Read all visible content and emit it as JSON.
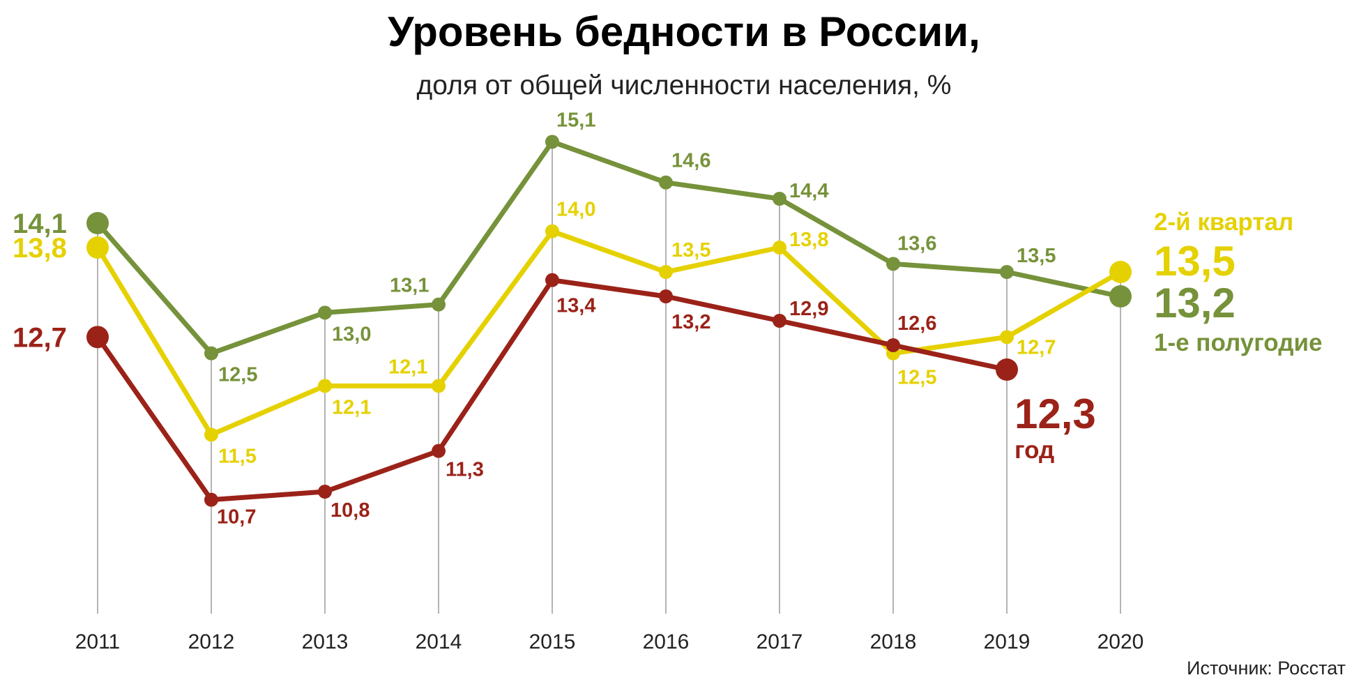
{
  "chart_data": {
    "type": "line",
    "title": "Уровень бедности в России,",
    "subtitle": "доля от общей численности населения, %",
    "source": "Источник: Росстат",
    "x": [
      "2011",
      "2012",
      "2013",
      "2014",
      "2015",
      "2016",
      "2017",
      "2018",
      "2019",
      "2020"
    ],
    "ylim": [
      9.0,
      15.6
    ],
    "grid": "vertical lines at each year",
    "series": [
      {
        "key": "half",
        "name": "1-е полугодие",
        "color": "#76923a",
        "values": [
          14.1,
          12.5,
          13.0,
          13.1,
          15.1,
          14.6,
          14.4,
          13.6,
          13.5,
          13.2
        ],
        "labels": [
          "14,1",
          "12,5",
          "13,0",
          "13,1",
          "15,1",
          "14,6",
          "14,4",
          "13,6",
          "13,5",
          "13,2"
        ]
      },
      {
        "key": "quarter",
        "name": "2-й квартал",
        "color": "#e5d100",
        "values": [
          13.8,
          11.5,
          12.1,
          12.1,
          14.0,
          13.5,
          13.8,
          12.5,
          12.7,
          13.5
        ],
        "labels": [
          "13,8",
          "11,5",
          "12,1",
          "12,1",
          "14,0",
          "13,5",
          "13,8",
          "12,5",
          "12,7",
          "13,5"
        ]
      },
      {
        "key": "year",
        "name": "год",
        "color": "#9b2218",
        "values": [
          12.7,
          10.7,
          10.8,
          11.3,
          13.4,
          13.2,
          12.9,
          12.6,
          12.3,
          null
        ],
        "labels": [
          "12,7",
          "10,7",
          "10,8",
          "11,3",
          "13,4",
          "13,2",
          "12,9",
          "12,6",
          "12,3",
          ""
        ]
      }
    ]
  }
}
